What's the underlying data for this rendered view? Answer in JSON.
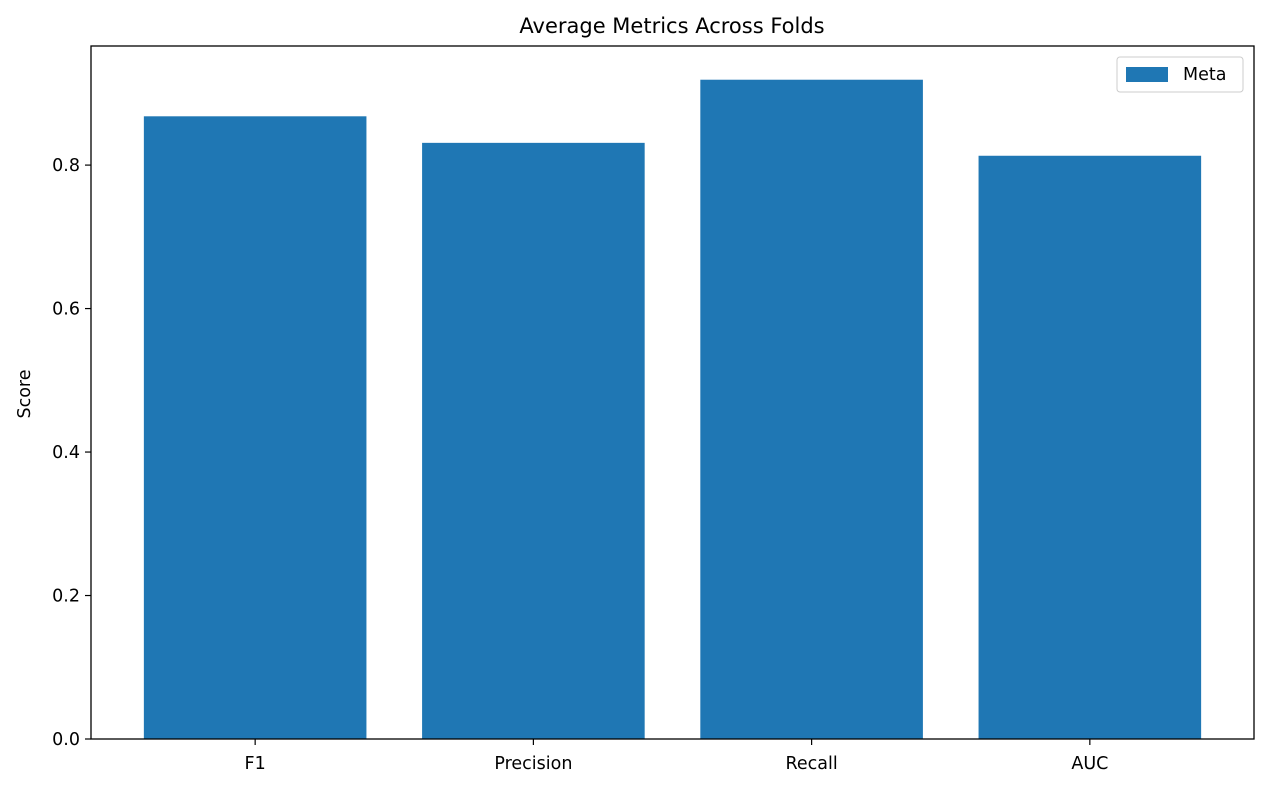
{
  "chart_data": {
    "type": "bar",
    "title": "Average Metrics Across Folds",
    "xlabel": "",
    "ylabel": "Score",
    "categories": [
      "F1",
      "Precision",
      "Recall",
      "AUC"
    ],
    "series": [
      {
        "name": "Meta",
        "values": [
          0.868,
          0.831,
          0.919,
          0.813
        ],
        "color": "#1f77b4"
      }
    ],
    "ylim": [
      0,
      0.966
    ],
    "yticks": [
      0.0,
      0.2,
      0.4,
      0.6,
      0.8
    ],
    "ytick_labels": [
      "0.0",
      "0.2",
      "0.4",
      "0.6",
      "0.8"
    ],
    "grid": false,
    "legend_position": "top-right"
  }
}
